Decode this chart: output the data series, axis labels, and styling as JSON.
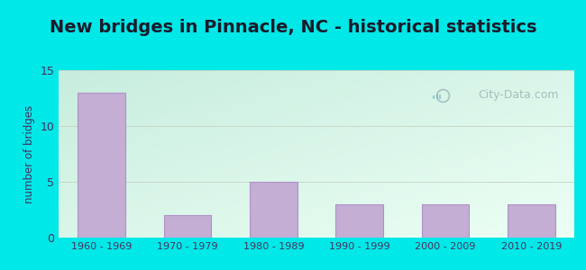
{
  "title": "New bridges in Pinnacle, NC - historical statistics",
  "categories": [
    "1960 - 1969",
    "1970 - 1979",
    "1980 - 1989",
    "1990 - 1999",
    "2000 - 2009",
    "2010 - 2019"
  ],
  "values": [
    13,
    2,
    5,
    3,
    3,
    3
  ],
  "bar_color": "#c4aed4",
  "bar_edge_color": "#b090c8",
  "ylabel": "number of bridges",
  "ylim": [
    0,
    15
  ],
  "yticks": [
    0,
    5,
    10,
    15
  ],
  "background_outer": "#00e8e8",
  "grad_top_left": "#cceedd",
  "grad_bottom_right": "#eefff5",
  "title_fontsize": 14,
  "ylabel_color": "#4a3060",
  "tick_color": "#4a3060",
  "watermark_text": "City-Data.com",
  "watermark_color": "#a0b8b8",
  "grid_color": "#c8d8c8",
  "title_color": "#1a1a2a",
  "title_bg_color": "#00e8e8",
  "bar_width": 0.55
}
